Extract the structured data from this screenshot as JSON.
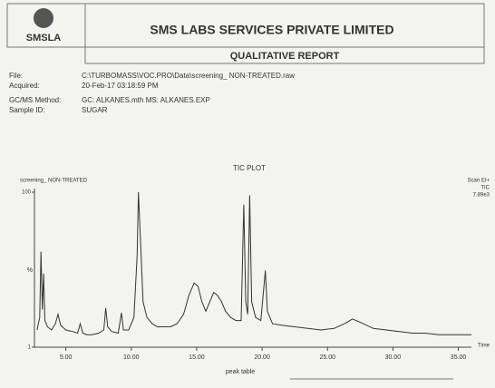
{
  "header": {
    "logo_text": "SMSLA",
    "company": "SMS LABS SERVICES PRIVATE LIMITED",
    "report_title": "QUALITATIVE REPORT"
  },
  "info": [
    {
      "label": "File:",
      "value": "C:\\TURBOMASS\\VOC.PRO\\Data\\screening_ NON-TREATED.raw"
    },
    {
      "label": "Acquired:",
      "value": "20-Feb-17 03:18:59 PM"
    },
    {
      "label": "GC/MS Method:",
      "value": "GC: ALKANES.mth    MS: ALKANES.EXP"
    },
    {
      "label": "Sample ID:",
      "value": "SUGAR"
    }
  ],
  "chart_data": {
    "type": "line",
    "title": "TIC PLOT",
    "sample_label": "screening_ NON-TREATED",
    "annotations": [
      "Scan EI+",
      "TIC",
      "7.89e3"
    ],
    "ylabel": "%",
    "xlabel": "Time",
    "color": "#333333",
    "x": [
      2.8,
      3.0,
      3.1,
      3.2,
      3.3,
      3.4,
      3.6,
      3.9,
      4.2,
      4.4,
      4.6,
      5.0,
      5.5,
      5.9,
      6.1,
      6.3,
      6.6,
      7.0,
      7.5,
      7.9,
      8.05,
      8.2,
      8.5,
      9.0,
      9.25,
      9.4,
      9.8,
      10.2,
      10.45,
      10.55,
      10.7,
      10.9,
      11.2,
      11.6,
      12.0,
      12.5,
      13.0,
      13.5,
      14.0,
      14.4,
      14.8,
      15.1,
      15.4,
      15.7,
      16.0,
      16.3,
      16.6,
      16.9,
      17.2,
      17.6,
      18.0,
      18.4,
      18.6,
      18.75,
      18.9,
      19.05,
      19.2,
      19.5,
      19.9,
      20.25,
      20.4,
      20.8,
      21.5,
      22.5,
      23.5,
      24.5,
      25.5,
      26.3,
      26.9,
      27.5,
      28.5,
      29.5,
      30.5,
      31.5,
      32.5,
      33.5,
      34.5,
      35.5,
      36.0
    ],
    "values": [
      12,
      20,
      62,
      25,
      48,
      18,
      14,
      12,
      16,
      22,
      15,
      12,
      11,
      10,
      16,
      10,
      9,
      9,
      10,
      12,
      26,
      14,
      11,
      10,
      23,
      12,
      12,
      20,
      60,
      100,
      70,
      30,
      20,
      16,
      14,
      14,
      14,
      16,
      22,
      34,
      42,
      40,
      30,
      24,
      30,
      36,
      34,
      30,
      24,
      20,
      18,
      18,
      92,
      30,
      22,
      98,
      30,
      20,
      18,
      50,
      24,
      16,
      15,
      14,
      13,
      12,
      13,
      16,
      19,
      17,
      13,
      12,
      11,
      10,
      10,
      9,
      9,
      9,
      9
    ],
    "xlim": [
      2.6,
      36.0
    ],
    "ylim": [
      1,
      100
    ],
    "xticks": [
      {
        "value": 5,
        "label": "5.00"
      },
      {
        "value": 10,
        "label": "10.00"
      },
      {
        "value": 15,
        "label": "15.00"
      },
      {
        "value": 20,
        "label": "20.00"
      },
      {
        "value": 25,
        "label": "25.00"
      },
      {
        "value": 30,
        "label": "30.00"
      },
      {
        "value": 35,
        "label": "35.00"
      }
    ],
    "yticks": [
      1,
      100
    ]
  },
  "footer": "peak table"
}
